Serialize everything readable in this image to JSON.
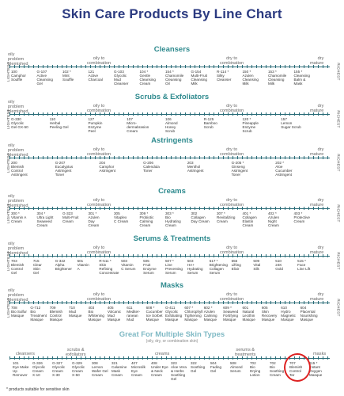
{
  "title": "Skin Care Products By Line Chart",
  "side_left": "LIGHTEST",
  "side_right": "RICHEST",
  "scale": {
    "oily": "oily",
    "problem": "problem",
    "blemished": "blemished",
    "oily_to": "oily to",
    "combination": "combination",
    "dry_to": "dry to",
    "mature": "mature",
    "dry": "dry"
  },
  "sections": [
    {
      "title": "Cleansers",
      "items": [
        [
          "100",
          "Camphor",
          "Souffle"
        ],
        [
          "G-107",
          "Active",
          "Cleansing",
          "Gel"
        ],
        [
          "102 *",
          "Mint",
          "Souffle"
        ],
        [
          "121",
          "Active",
          "Charcoal"
        ],
        [
          "G-103",
          "Glycolic",
          "Mud",
          "Cleanser"
        ],
        [
          "104 *",
          "Gentle",
          "Cleansing",
          "Cream"
        ],
        [
          "154 *",
          "Chamomile",
          "Cleansing",
          "Oil"
        ],
        [
          "G-154",
          "Multi-Fruit",
          "Cleansing",
          "Milk"
        ],
        [
          "R-114 *",
          "Silky",
          "Cleanser"
        ],
        [
          "150 *",
          "Azulen",
          "Cleansing",
          "Milk"
        ],
        [
          "153 *",
          "Chamomile",
          "Cleansing",
          "Milk"
        ],
        [
          "155 *",
          "Cleansing",
          "Balm &",
          "Mask"
        ]
      ]
    },
    {
      "title": "Scrubs & Exfoliators",
      "items": [
        [
          "G-330",
          "Glycolic",
          "Gel GX-50"
        ],
        [
          "110",
          "Herbal",
          "Peeling Gel"
        ],
        [
          "127",
          "Pumpkin",
          "Enzyme",
          "Peel"
        ],
        [
          "107",
          "Micro-",
          "dermabrasion",
          "Cream"
        ],
        [
          "106",
          "Almond",
          "Honey",
          "Scrub"
        ],
        [
          "R-125",
          "Bamboo",
          "Scrub"
        ],
        [
          "120 *",
          "Pineapple",
          "Enzyme",
          "Scrub"
        ],
        [
          "157",
          "Lemon",
          "Sugar Scrub"
        ]
      ]
    },
    {
      "title": "Astringents",
      "items": [
        [
          "200",
          "Blemish",
          "Control",
          "Astringent"
        ],
        [
          "G-207",
          "Eucalyptus",
          "Astringent",
          "Toner"
        ],
        [
          "204",
          "Camphor",
          "Astringent"
        ],
        [
          "G-206",
          "Calendula",
          "Toner"
        ],
        [
          "203",
          "Menthol",
          "Astringent"
        ],
        [
          "G-205 *",
          "Ginseng",
          "Astringent",
          "Toner"
        ],
        [
          "202 *",
          "Aloe",
          "Cucumber",
          "Astringent"
        ]
      ]
    },
    {
      "title": "Creams",
      "items": [
        [
          "300 *",
          "Vitamin A",
          "Cream"
        ],
        [
          "304 *",
          "Ultra Light",
          "Seaweed",
          "Cream"
        ],
        [
          "G-323",
          "Multi-Fruit",
          "Cream"
        ],
        [
          "301 *",
          "Azulen",
          "Day",
          "Cream"
        ],
        [
          "305",
          "Vitaplex",
          "C Cream"
        ],
        [
          "309 *",
          "Probiotic",
          "Calming",
          "Cream"
        ],
        [
          "303 *",
          "Bio",
          "Hydrating",
          "Cream"
        ],
        [
          "302",
          "Collagen",
          "Day Cream"
        ],
        [
          "307 *",
          "Revitalizing",
          "Cream"
        ],
        [
          "401 *",
          "Collagen",
          "Elastin",
          "Cream"
        ],
        [
          "402 *",
          "Azulen",
          "Night",
          "Cream"
        ],
        [
          "403 *",
          "Protective",
          "Cream"
        ]
      ]
    },
    {
      "title": "Serums & Treatments",
      "items": [
        [
          "703",
          "Blemish",
          "Control",
          "Gel"
        ],
        [
          "715",
          "Clear",
          "Skin",
          "Gel"
        ],
        [
          "G-322",
          "Alpha",
          "Brightener"
        ],
        [
          "501",
          "Vitamin",
          "A"
        ],
        [
          "R-511 *",
          "Skin",
          "Refining",
          "Concentrate"
        ],
        [
          "503",
          "Vitamin",
          "C Serum"
        ],
        [
          "505",
          "Fruit",
          "Enzyme",
          "Serum"
        ],
        [
          "507 *",
          "Line",
          "Preventing",
          "Serum"
        ],
        [
          "503",
          "HA+",
          "Hydrating",
          "Serum"
        ],
        [
          "517 *",
          "Brightening",
          "Collagen",
          "Serum"
        ],
        [
          "555",
          "Lifting",
          "Elixir"
        ],
        [
          "509",
          "Vital",
          "Silk"
        ],
        [
          "510",
          "24K",
          "Gold"
        ],
        [
          "515 *",
          "Face",
          "Line Lift"
        ]
      ]
    },
    {
      "title": "Masks",
      "items": [
        [
          "708",
          "Bio Sulfur",
          "Masque"
        ],
        [
          "G-712",
          "Bio",
          "Treatment",
          "Masque"
        ],
        [
          "709",
          "Blemish",
          "Control",
          "Masque"
        ],
        [
          "710",
          "Mud",
          "Masque"
        ],
        [
          "403",
          "Bio",
          "Whitening",
          "Masque"
        ],
        [
          "405",
          "Volcanic",
          "Mud",
          "Masque"
        ],
        [
          "611",
          "Mediter-",
          "ranean",
          "Mud"
        ],
        [
          "608 *",
          "Cucumber",
          "Ice Sorbet",
          "Masque"
        ],
        [
          "G-411",
          "Glycolic",
          "Exfoliating",
          "Masque"
        ],
        [
          "607 *",
          "Chlorophyll",
          "Tightening",
          "Masque"
        ],
        [
          "602 *",
          "Azulen",
          "Calming",
          "Masque"
        ],
        [
          "609 *",
          "Seaweed",
          "Fortifying",
          "Masque"
        ],
        [
          "601",
          "Natural",
          "Lecithin",
          "Masque"
        ],
        [
          "605",
          "Skin",
          "Recovery",
          "Masque"
        ],
        [
          "610",
          "Hydro",
          "Magnetic",
          "Masque"
        ],
        [
          "604",
          "Placental",
          "Nourishing",
          "Masque"
        ]
      ]
    }
  ],
  "multi": {
    "title": "Great For Multiple Skin Types",
    "subtitle": "(oily, dry, or combination skin)",
    "labels": {
      "cleansers": "cleansers",
      "scrubs": "scrubs &",
      "exfoliators": "exfoliators",
      "creams": "creams",
      "serums": "serums &",
      "treatments": "treatments",
      "masks": "masks"
    },
    "items": [
      [
        "101",
        "Eye Make",
        "Up",
        "Remover"
      ],
      [
        "G-326",
        "Glycolic",
        "Cream",
        "X-10"
      ],
      [
        "G-327",
        "Glycolic",
        "Cream",
        "X-30"
      ],
      [
        "G-329",
        "Glycolic",
        "Cream",
        "X-50"
      ],
      [
        "308",
        "Lemon",
        "Wafer Gel",
        "Cream"
      ],
      [
        "321",
        "Calamine",
        "Mask",
        "Cream"
      ],
      [
        "407",
        "Microsilk",
        "Eye",
        "Cream"
      ],
      [
        "408",
        "Under Eye",
        "& Neck",
        "Cream"
      ],
      [
        "323",
        "Aloe Vera",
        "& Herbs",
        "Soothing",
        "Gel"
      ],
      [
        "322",
        "Soothing",
        "Gel"
      ],
      [
        "504",
        "Fading",
        "Gel"
      ],
      [
        "508",
        "Almond",
        "Serum"
      ],
      [
        "702",
        "Bio",
        "Drying",
        "Lotion"
      ],
      [
        "702",
        "Bio",
        "Soothing",
        "Cream"
      ],
      [
        "707",
        "Blemish",
        "Control",
        "Tar"
      ],
      [
        "115 *",
        "Instant",
        "Oxygen",
        "Masque"
      ]
    ]
  },
  "footnote": "* products suitable for sensitive skin"
}
